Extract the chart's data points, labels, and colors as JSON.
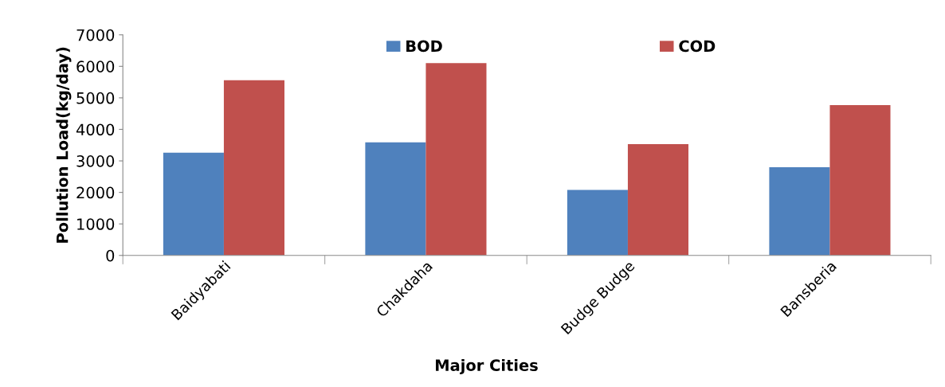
{
  "chart_data": {
    "type": "bar",
    "xlabel": "Major Cities",
    "ylabel": "Pollution Load(kg/day)",
    "categories": [
      "Baidyabati",
      "Chakdaha",
      "Budge Budge",
      "Bansberia"
    ],
    "series": [
      {
        "name": "BOD",
        "color": "#4f81bd",
        "values": [
          3260,
          3590,
          2080,
          2800
        ]
      },
      {
        "name": "COD",
        "color": "#c0504d",
        "values": [
          5560,
          6100,
          3530,
          4770
        ]
      }
    ],
    "ylim": [
      0,
      7000
    ],
    "yticks": [
      0,
      1000,
      2000,
      3000,
      4000,
      5000,
      6000,
      7000
    ],
    "grid": false,
    "legend": "top"
  }
}
